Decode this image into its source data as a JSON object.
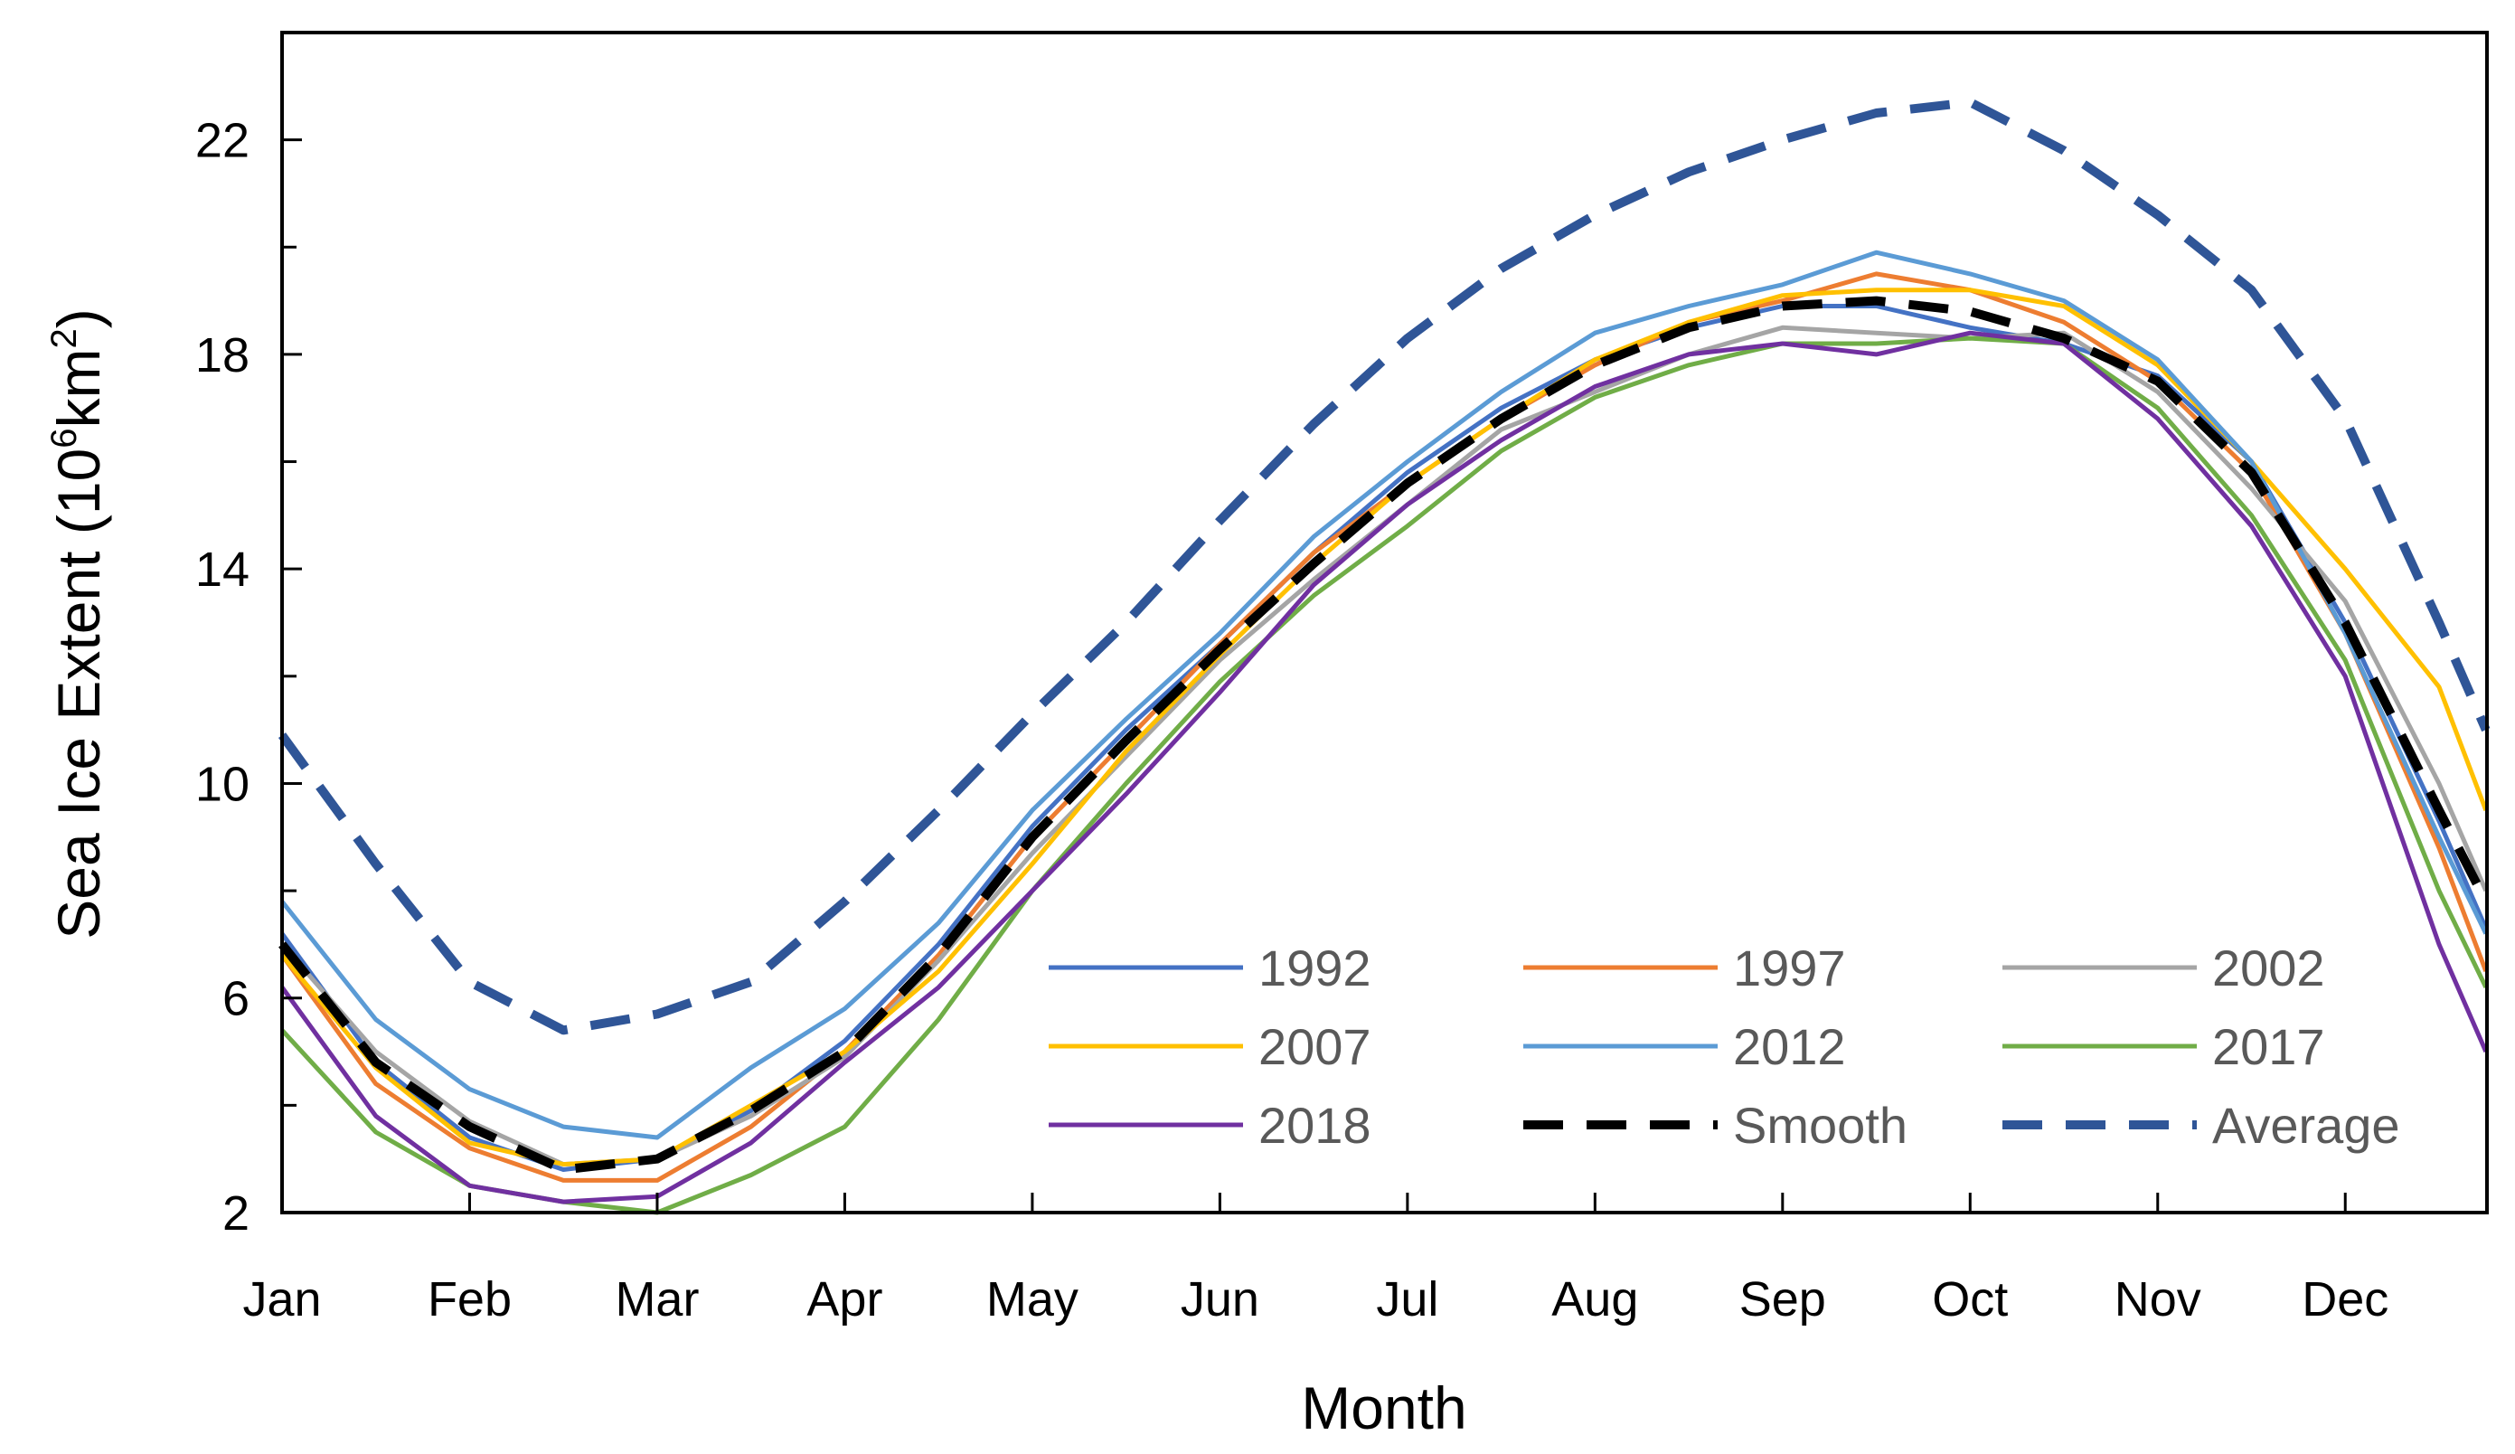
{
  "chart_data": {
    "type": "line",
    "title": "",
    "xlabel": "Month",
    "ylabel": "Sea Ice Extent (10",
    "ylabel_sup1": "6",
    "ylabel_mid": "km",
    "ylabel_sup2": "2",
    "ylabel_end": ")",
    "ylim": [
      2,
      24
    ],
    "xlim": [
      0,
      11.75
    ],
    "yticks": [
      2,
      6,
      10,
      14,
      18,
      22
    ],
    "yminor_step": 2,
    "xticks": [
      "Jan",
      "Feb",
      "Mar",
      "Apr",
      "May",
      "Jun",
      "Jul",
      "Aug",
      "Sep",
      "Oct",
      "Nov",
      "Dec"
    ],
    "grid": false,
    "legend_position": "bottom-right",
    "x": [
      0,
      0.5,
      1,
      1.5,
      2,
      2.5,
      3,
      3.5,
      4,
      4.5,
      5,
      5.5,
      6,
      6.5,
      7,
      7.5,
      8,
      8.5,
      9,
      9.5,
      10,
      10.5,
      11,
      11.5,
      11.75
    ],
    "series": [
      {
        "name": "1992",
        "color": "#4472c4",
        "dash": false,
        "values": [
          7.2,
          4.8,
          3.4,
          2.8,
          3.0,
          3.9,
          5.2,
          7.0,
          9.2,
          11.0,
          12.6,
          14.3,
          15.8,
          17.0,
          17.9,
          18.5,
          18.9,
          18.9,
          18.5,
          18.2,
          17.6,
          16.0,
          13.0,
          9.3,
          7.3
        ]
      },
      {
        "name": "1997",
        "color": "#ed7d31",
        "dash": false,
        "values": [
          6.8,
          4.4,
          3.2,
          2.6,
          2.6,
          3.6,
          5.0,
          6.8,
          9.0,
          10.8,
          12.6,
          14.3,
          15.6,
          16.8,
          17.8,
          18.6,
          19.0,
          19.5,
          19.2,
          18.6,
          17.5,
          15.8,
          12.8,
          8.8,
          6.5
        ]
      },
      {
        "name": "2002",
        "color": "#a5a5a5",
        "dash": false,
        "values": [
          7.0,
          5.0,
          3.7,
          2.9,
          3.0,
          3.8,
          4.9,
          6.7,
          8.7,
          10.5,
          12.3,
          13.8,
          15.2,
          16.6,
          17.3,
          18.0,
          18.5,
          18.4,
          18.3,
          18.4,
          17.3,
          15.5,
          13.4,
          10.0,
          8.0
        ]
      },
      {
        "name": "2007",
        "color": "#ffc000",
        "dash": false,
        "values": [
          6.8,
          4.7,
          3.3,
          2.9,
          3.0,
          4.0,
          5.0,
          6.5,
          8.5,
          10.6,
          12.4,
          14.1,
          15.6,
          16.8,
          17.9,
          18.6,
          19.1,
          19.2,
          19.2,
          18.9,
          17.8,
          16.0,
          14.0,
          11.8,
          9.5
        ]
      },
      {
        "name": "2012",
        "color": "#5b9bd5",
        "dash": false,
        "values": [
          7.8,
          5.6,
          4.3,
          3.6,
          3.4,
          4.7,
          5.8,
          7.4,
          9.5,
          11.2,
          12.8,
          14.6,
          16.0,
          17.3,
          18.4,
          18.9,
          19.3,
          19.9,
          19.5,
          19.0,
          17.9,
          16.0,
          12.8,
          9.0,
          7.2
        ]
      },
      {
        "name": "2017",
        "color": "#70ad47",
        "dash": false,
        "values": [
          5.4,
          3.5,
          2.5,
          2.2,
          2.0,
          2.7,
          3.6,
          5.6,
          8.0,
          10.0,
          11.9,
          13.5,
          14.8,
          16.2,
          17.2,
          17.8,
          18.2,
          18.2,
          18.3,
          18.2,
          17.0,
          15.0,
          12.3,
          8.0,
          6.2
        ]
      },
      {
        "name": "2018",
        "color": "#7030a0",
        "dash": false,
        "values": [
          6.2,
          3.8,
          2.5,
          2.2,
          2.3,
          3.3,
          4.8,
          6.2,
          8.0,
          9.8,
          11.7,
          13.7,
          15.2,
          16.4,
          17.4,
          18.0,
          18.2,
          18.0,
          18.4,
          18.2,
          16.8,
          14.8,
          12.0,
          7.0,
          5.0
        ]
      },
      {
        "name": "Smooth",
        "color": "#000000",
        "dash": true,
        "values": [
          7.0,
          4.8,
          3.6,
          2.8,
          3.0,
          3.9,
          5.0,
          6.8,
          9.0,
          10.8,
          12.5,
          14.1,
          15.6,
          16.8,
          17.8,
          18.5,
          18.9,
          19.0,
          18.8,
          18.3,
          17.5,
          15.8,
          13.0,
          9.5,
          7.8
        ]
      },
      {
        "name": "Average",
        "color": "#2f5597",
        "dash": true,
        "values": [
          10.9,
          8.5,
          6.3,
          5.4,
          5.7,
          6.3,
          7.8,
          9.5,
          11.3,
          13.0,
          14.9,
          16.7,
          18.3,
          19.6,
          20.6,
          21.4,
          22.0,
          22.5,
          22.7,
          21.8,
          20.6,
          19.2,
          16.8,
          13.0,
          11.0
        ]
      }
    ]
  }
}
